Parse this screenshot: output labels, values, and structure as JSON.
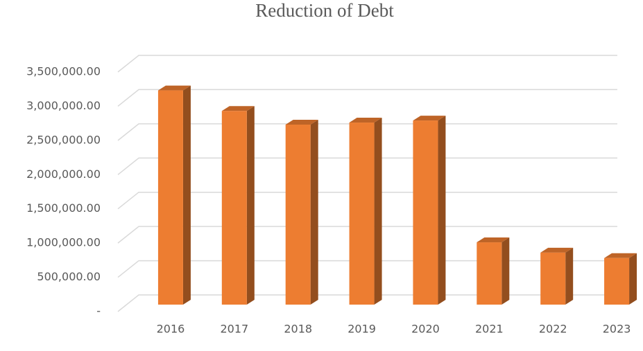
{
  "chart_data": {
    "type": "bar3d",
    "title": "Reduction of Debt",
    "categories": [
      "2016",
      "2017",
      "2018",
      "2019",
      "2020",
      "2021",
      "2022",
      "2023"
    ],
    "values": [
      3130000,
      2830000,
      2630000,
      2660000,
      2690000,
      910000,
      760000,
      680000
    ],
    "color": "#ed7d31",
    "ylim": [
      0,
      3500000
    ],
    "yticks": [
      {
        "value": 0,
        "label": "-"
      },
      {
        "value": 500000,
        "label": "500,000.00"
      },
      {
        "value": 1000000,
        "label": "1,000,000.00"
      },
      {
        "value": 1500000,
        "label": "1,500,000.00"
      },
      {
        "value": 2000000,
        "label": "2,000,000.00"
      },
      {
        "value": 2500000,
        "label": "2,500,000.00"
      },
      {
        "value": 3000000,
        "label": "3,000,000.00"
      },
      {
        "value": 3500000,
        "label": "3,500,000.00"
      }
    ],
    "grid": true
  }
}
